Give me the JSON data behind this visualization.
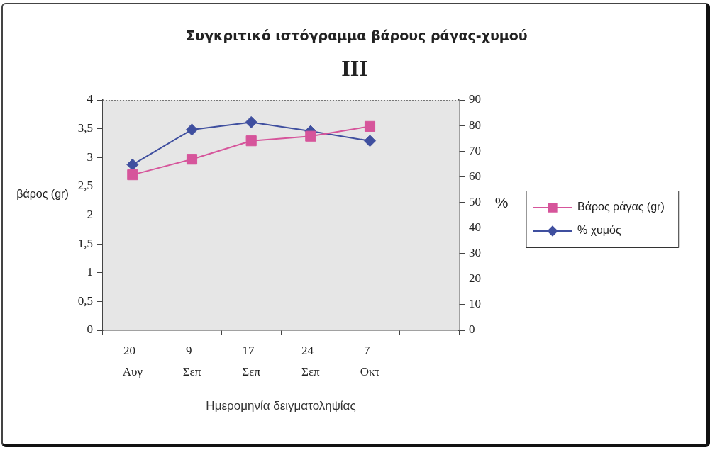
{
  "chart_data": {
    "type": "line",
    "title": "Συγκριτικό ιστόγραμμα βάρους ράγας-χυμού",
    "subtitle": "III",
    "xlabel": "Ημερομηνία δειγματοληψίας",
    "ylabel": "βάρος (gr)",
    "y2label": "%",
    "categories": [
      "20– Αυγ",
      "9– Σεπ",
      "17– Σεπ",
      "24– Σεπ",
      "7– Οκτ",
      null
    ],
    "series": [
      {
        "name": "Βάρος ράγας (gr)",
        "color": "#d6559b",
        "marker": "square",
        "values": [
          2.7,
          2.97,
          3.29,
          3.37,
          3.54,
          null
        ]
      },
      {
        "name": "% χυμός",
        "color": "#3f4f9f",
        "marker": "diamond",
        "axis": "y2",
        "values": [
          64.7,
          78.4,
          81.3,
          77.8,
          74.0,
          null
        ]
      }
    ],
    "ylim": [
      0,
      4
    ],
    "yticks": [
      0,
      {
        "value": 0.5,
        "label": "0,5"
      },
      1,
      {
        "value": 1.5,
        "label": "1,5"
      },
      2,
      {
        "value": 2.5,
        "label": "2,5"
      },
      3,
      {
        "value": 3.5,
        "label": "3,5"
      },
      4
    ],
    "y2lim": [
      0,
      90
    ],
    "y2ticks": [
      0,
      10,
      20,
      30,
      40,
      50,
      60,
      70,
      80,
      90
    ],
    "legend": "right",
    "line_style": "solid"
  }
}
